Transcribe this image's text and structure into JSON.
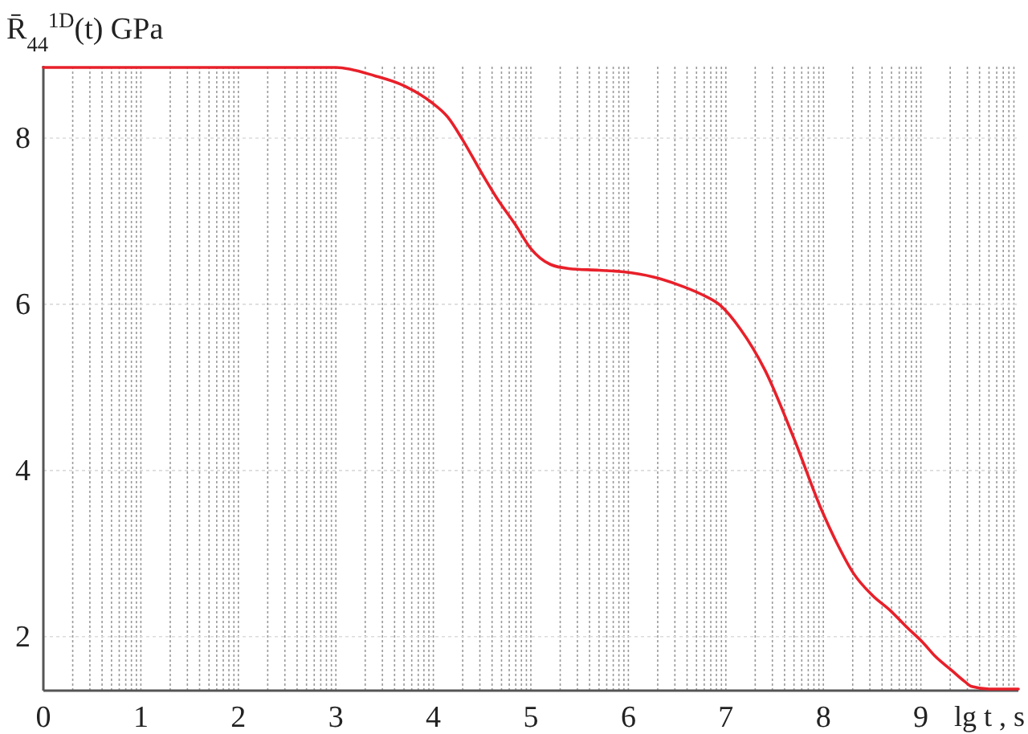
{
  "chart_data": {
    "type": "line",
    "ylabel": "R̄$_{44}$$^{1D}$(t)  GPa",
    "xlabel": "lg t , s",
    "x": [
      0,
      1,
      2,
      3,
      3.4,
      3.7,
      3.97,
      4.15,
      4.3,
      4.5,
      4.65,
      4.84,
      5.0,
      5.2,
      5.39,
      5.7,
      5.95,
      6.25,
      6.5,
      6.75,
      6.94,
      7.15,
      7.4,
      7.7,
      7.98,
      8.15,
      8.31,
      8.5,
      8.69,
      8.85,
      9.02,
      9.15,
      9.31,
      9.45,
      9.52,
      9.7,
      10
    ],
    "series": [
      {
        "color": "#e8202a",
        "values": [
          8.85,
          8.85,
          8.85,
          8.85,
          8.75,
          8.63,
          8.44,
          8.25,
          7.98,
          7.57,
          7.28,
          6.96,
          6.67,
          6.48,
          6.43,
          6.41,
          6.39,
          6.33,
          6.24,
          6.12,
          5.99,
          5.7,
          5.21,
          4.38,
          3.53,
          3.1,
          2.76,
          2.5,
          2.31,
          2.12,
          1.93,
          1.76,
          1.6,
          1.46,
          1.4,
          1.37,
          1.37
        ]
      }
    ],
    "xlim": [
      0,
      10
    ],
    "xticks": [
      0,
      1,
      2,
      3,
      4,
      5,
      6,
      7,
      8,
      9
    ],
    "ylim": [
      1.35,
      8.87
    ],
    "yticks": [
      2,
      4,
      6,
      8
    ],
    "grid": true,
    "line_style": "solid"
  }
}
